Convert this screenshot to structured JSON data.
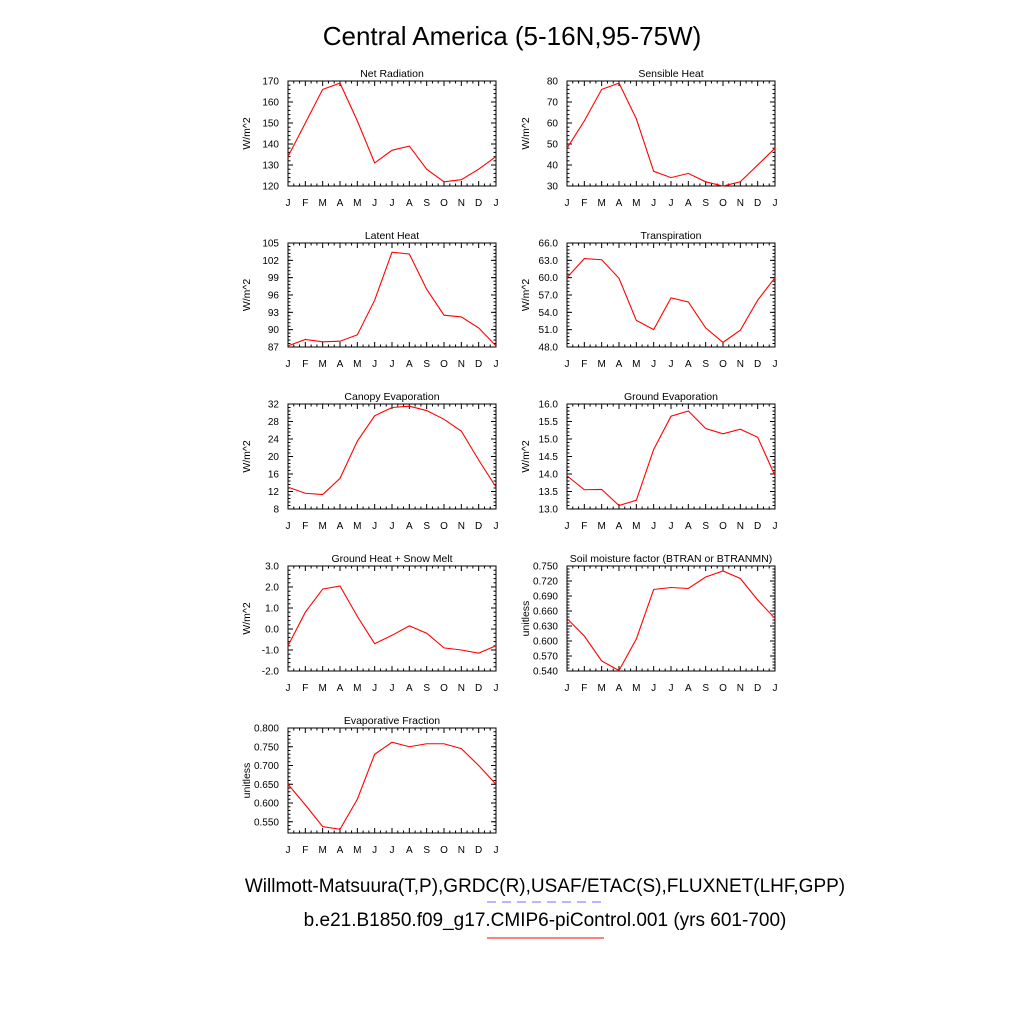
{
  "page": {
    "title": "Central America (5-16N,95-75W)",
    "caption_obs": "Willmott-Matsuura(T,P),GRDC(R),USAF/ETAC(S),FLUXNET(LHF,GPP)",
    "caption_model": "b.e21.B1850.f09_g17.CMIP6-piControl.001 (yrs 601-700)",
    "obs_line_color": "#6f6fff",
    "model_line_color": "#ff0000"
  },
  "chart_data": [
    {
      "type": "line",
      "title": "Net Radiation",
      "ylabel": "W/m^2",
      "ylim": [
        120,
        170
      ],
      "yticks": [
        "120",
        "130",
        "140",
        "150",
        "160",
        "170"
      ],
      "categories": [
        "J",
        "F",
        "M",
        "A",
        "M",
        "J",
        "J",
        "A",
        "S",
        "O",
        "N",
        "D",
        "J"
      ],
      "series": [
        {
          "name": "b.e21.B1850.f09_g17.CMIP6-piControl.001",
          "color": "#ff0000",
          "values": [
            134,
            150,
            166,
            169,
            151,
            131,
            137,
            139,
            128,
            122,
            123,
            128,
            134
          ]
        }
      ]
    },
    {
      "type": "line",
      "title": "Sensible Heat",
      "ylabel": "W/m^2",
      "ylim": [
        30,
        80
      ],
      "yticks": [
        "30",
        "40",
        "50",
        "60",
        "70",
        "80"
      ],
      "categories": [
        "J",
        "F",
        "M",
        "A",
        "M",
        "J",
        "J",
        "A",
        "S",
        "O",
        "N",
        "D",
        "J"
      ],
      "series": [
        {
          "name": "b.e21.B1850.f09_g17.CMIP6-piControl.001",
          "color": "#ff0000",
          "values": [
            48,
            61,
            76,
            79,
            62,
            37,
            34,
            36,
            32,
            30,
            32,
            40,
            48
          ]
        }
      ]
    },
    {
      "type": "line",
      "title": "Latent Heat",
      "ylabel": "W/m^2",
      "ylim": [
        87,
        105
      ],
      "yticks": [
        "87",
        "90",
        "93",
        "96",
        "99",
        "102",
        "105"
      ],
      "categories": [
        "J",
        "F",
        "M",
        "A",
        "M",
        "J",
        "J",
        "A",
        "S",
        "O",
        "N",
        "D",
        "J"
      ],
      "series": [
        {
          "name": "b.e21.B1850.f09_g17.CMIP6-piControl.001",
          "color": "#ff0000",
          "values": [
            87.2,
            88.3,
            87.9,
            88.0,
            89.1,
            95.1,
            103.4,
            103.1,
            97.0,
            92.5,
            92.2,
            90.3,
            87.2
          ]
        }
      ]
    },
    {
      "type": "line",
      "title": "Transpiration",
      "ylabel": "W/m^2",
      "ylim": [
        48,
        66
      ],
      "yticks": [
        "48.0",
        "51.0",
        "54.0",
        "57.0",
        "60.0",
        "63.0",
        "66.0"
      ],
      "categories": [
        "J",
        "F",
        "M",
        "A",
        "M",
        "J",
        "J",
        "A",
        "S",
        "O",
        "N",
        "D",
        "J"
      ],
      "series": [
        {
          "name": "b.e21.B1850.f09_g17.CMIP6-piControl.001",
          "color": "#ff0000",
          "values": [
            60.0,
            63.3,
            63.1,
            59.9,
            52.6,
            51.0,
            56.5,
            55.8,
            51.3,
            48.8,
            50.9,
            56.1,
            60.0
          ]
        }
      ]
    },
    {
      "type": "line",
      "title": "Canopy Evaporation",
      "ylabel": "W/m^2",
      "ylim": [
        8,
        32
      ],
      "yticks": [
        "8",
        "12",
        "16",
        "20",
        "24",
        "28",
        "32"
      ],
      "categories": [
        "J",
        "F",
        "M",
        "A",
        "M",
        "J",
        "J",
        "A",
        "S",
        "O",
        "N",
        "D",
        "J"
      ],
      "series": [
        {
          "name": "b.e21.B1850.f09_g17.CMIP6-piControl.001",
          "color": "#ff0000",
          "values": [
            13.0,
            11.6,
            11.3,
            15.0,
            23.5,
            29.3,
            31.2,
            31.5,
            30.5,
            28.5,
            25.8,
            19.2,
            13.0
          ]
        }
      ]
    },
    {
      "type": "line",
      "title": "Ground Evaporation",
      "ylabel": "W/m^2",
      "ylim": [
        13.0,
        16.0
      ],
      "yticks": [
        "13.0",
        "13.5",
        "14.0",
        "14.5",
        "15.0",
        "15.5",
        "16.0"
      ],
      "categories": [
        "J",
        "F",
        "M",
        "A",
        "M",
        "J",
        "J",
        "A",
        "S",
        "O",
        "N",
        "D",
        "J"
      ],
      "series": [
        {
          "name": "b.e21.B1850.f09_g17.CMIP6-piControl.001",
          "color": "#ff0000",
          "values": [
            13.95,
            13.55,
            13.56,
            13.1,
            13.25,
            14.7,
            15.65,
            15.8,
            15.3,
            15.15,
            15.28,
            15.05,
            13.95
          ]
        }
      ]
    },
    {
      "type": "line",
      "title": "Ground Heat + Snow Melt",
      "ylabel": "W/m^2",
      "ylim": [
        -2.0,
        3.0
      ],
      "yticks": [
        "-2.0",
        "-1.0",
        "0.0",
        "1.0",
        "2.0",
        "3.0"
      ],
      "categories": [
        "J",
        "F",
        "M",
        "A",
        "M",
        "J",
        "J",
        "A",
        "S",
        "O",
        "N",
        "D",
        "J"
      ],
      "series": [
        {
          "name": "b.e21.B1850.f09_g17.CMIP6-piControl.001",
          "color": "#ff0000",
          "values": [
            -0.8,
            0.8,
            1.9,
            2.05,
            0.6,
            -0.7,
            -0.3,
            0.15,
            -0.2,
            -0.9,
            -1.0,
            -1.15,
            -0.8
          ]
        }
      ]
    },
    {
      "type": "line",
      "title": "Soil moisture factor (BTRAN or BTRANMN)",
      "ylabel": "unitless",
      "ylim": [
        0.54,
        0.75
      ],
      "yticks": [
        "0.540",
        "0.570",
        "0.600",
        "0.630",
        "0.660",
        "0.690",
        "0.720",
        "0.750"
      ],
      "categories": [
        "J",
        "F",
        "M",
        "A",
        "M",
        "J",
        "J",
        "A",
        "S",
        "O",
        "N",
        "D",
        "J"
      ],
      "series": [
        {
          "name": "b.e21.B1850.f09_g17.CMIP6-piControl.001",
          "color": "#ff0000",
          "values": [
            0.645,
            0.61,
            0.56,
            0.541,
            0.604,
            0.703,
            0.707,
            0.705,
            0.728,
            0.74,
            0.725,
            0.682,
            0.645
          ]
        }
      ]
    },
    {
      "type": "line",
      "title": "Evaporative Fraction",
      "ylabel": "unitless",
      "ylim": [
        0.52,
        0.8
      ],
      "yticks": [
        "0.550",
        "0.600",
        "0.650",
        "0.700",
        "0.750",
        "0.800"
      ],
      "categories": [
        "J",
        "F",
        "M",
        "A",
        "M",
        "J",
        "J",
        "A",
        "S",
        "O",
        "N",
        "D",
        "J"
      ],
      "series": [
        {
          "name": "b.e21.B1850.f09_g17.CMIP6-piControl.001",
          "color": "#ff0000",
          "values": [
            0.65,
            0.595,
            0.537,
            0.53,
            0.61,
            0.73,
            0.762,
            0.75,
            0.758,
            0.758,
            0.745,
            0.7,
            0.65
          ]
        }
      ]
    }
  ]
}
